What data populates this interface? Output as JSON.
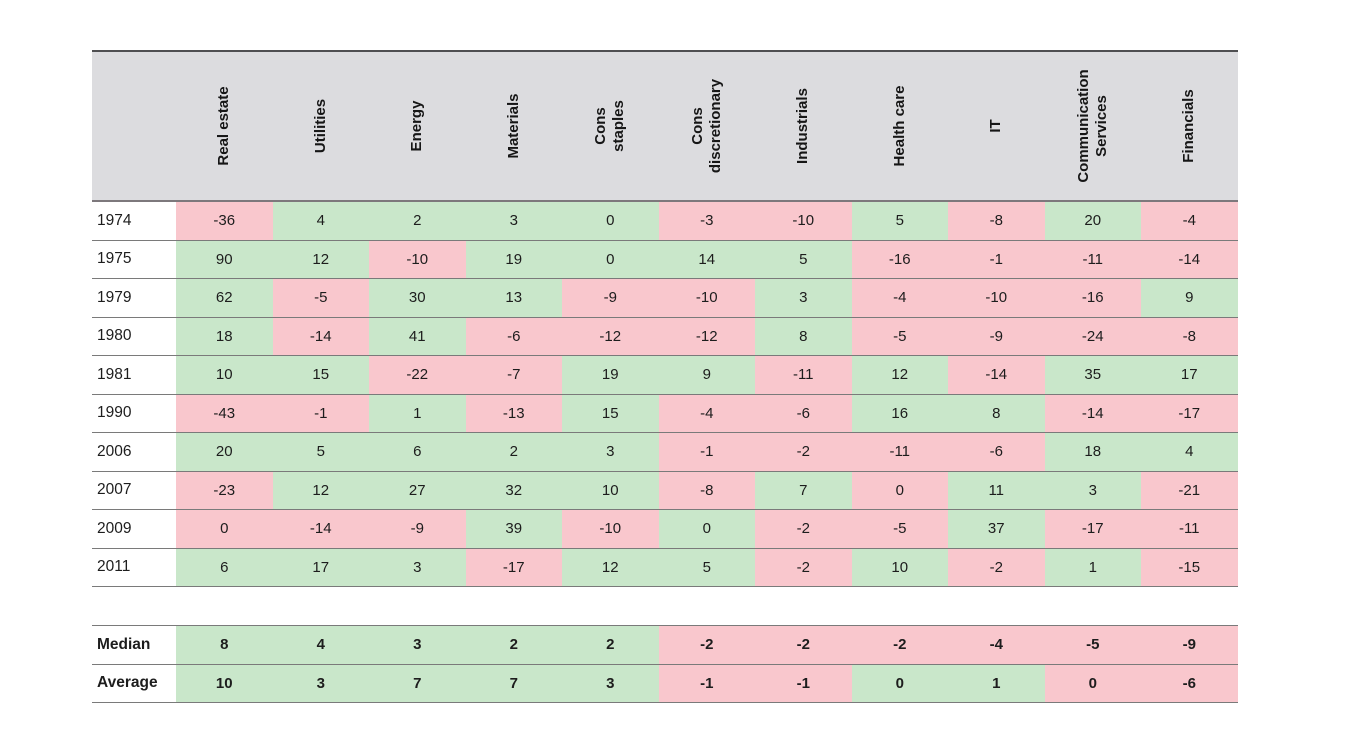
{
  "colors": {
    "positive_bg": "#c9e7ca",
    "negative_bg": "#f9c7cd",
    "header_bg": "#dcdcdf",
    "grid_line": "#7a7a7a",
    "text": "#1d1d1d"
  },
  "chart_data": {
    "type": "table",
    "title": "",
    "columns": [
      "Real estate",
      "Utilities",
      "Energy",
      "Materials",
      "Cons\nstaples",
      "Cons\ndiscretionary",
      "Industrials",
      "Health care",
      "IT",
      "Communication\nServices",
      "Financials"
    ],
    "cell_color_legend": {
      "g": "green (outperform)",
      "r": "pink (underperform)"
    },
    "rows": [
      {
        "label": "1974",
        "values": [
          -36,
          4,
          2,
          3,
          0,
          -3,
          -10,
          5,
          -8,
          20,
          -4
        ],
        "colors": [
          "r",
          "g",
          "g",
          "g",
          "g",
          "r",
          "r",
          "g",
          "r",
          "g",
          "r"
        ]
      },
      {
        "label": "1975",
        "values": [
          90,
          12,
          -10,
          19,
          0,
          14,
          5,
          -16,
          -1,
          -11,
          -14
        ],
        "colors": [
          "g",
          "g",
          "r",
          "g",
          "g",
          "g",
          "g",
          "r",
          "r",
          "r",
          "r"
        ]
      },
      {
        "label": "1979",
        "values": [
          62,
          -5,
          30,
          13,
          -9,
          -10,
          3,
          -4,
          -10,
          -16,
          9
        ],
        "colors": [
          "g",
          "r",
          "g",
          "g",
          "r",
          "r",
          "g",
          "r",
          "r",
          "r",
          "g"
        ]
      },
      {
        "label": "1980",
        "values": [
          18,
          -14,
          41,
          -6,
          -12,
          -12,
          8,
          -5,
          -9,
          -24,
          -8
        ],
        "colors": [
          "g",
          "r",
          "g",
          "r",
          "r",
          "r",
          "g",
          "r",
          "r",
          "r",
          "r"
        ]
      },
      {
        "label": "1981",
        "values": [
          10,
          15,
          -22,
          -7,
          19,
          9,
          -11,
          12,
          -14,
          35,
          17
        ],
        "colors": [
          "g",
          "g",
          "r",
          "r",
          "g",
          "g",
          "r",
          "g",
          "r",
          "g",
          "g"
        ]
      },
      {
        "label": "1990",
        "values": [
          -43,
          -1,
          1,
          -13,
          15,
          -4,
          -6,
          16,
          8,
          -14,
          -17
        ],
        "colors": [
          "r",
          "r",
          "g",
          "r",
          "g",
          "r",
          "r",
          "g",
          "g",
          "r",
          "r"
        ]
      },
      {
        "label": "2006",
        "values": [
          20,
          5,
          6,
          2,
          3,
          -1,
          -2,
          -11,
          -6,
          18,
          4
        ],
        "colors": [
          "g",
          "g",
          "g",
          "g",
          "g",
          "r",
          "r",
          "r",
          "r",
          "g",
          "g"
        ]
      },
      {
        "label": "2007",
        "values": [
          -23,
          12,
          27,
          32,
          10,
          -8,
          7,
          0,
          11,
          3,
          -21
        ],
        "colors": [
          "r",
          "g",
          "g",
          "g",
          "g",
          "r",
          "g",
          "r",
          "g",
          "g",
          "r"
        ]
      },
      {
        "label": "2009",
        "values": [
          0,
          -14,
          -9,
          39,
          -10,
          0,
          -2,
          -5,
          37,
          -17,
          -11
        ],
        "colors": [
          "r",
          "r",
          "r",
          "g",
          "r",
          "g",
          "r",
          "r",
          "g",
          "r",
          "r"
        ]
      },
      {
        "label": "2011",
        "values": [
          6,
          17,
          3,
          -17,
          12,
          5,
          -2,
          10,
          -2,
          1,
          -15
        ],
        "colors": [
          "g",
          "g",
          "g",
          "r",
          "g",
          "g",
          "r",
          "g",
          "r",
          "g",
          "r"
        ]
      }
    ],
    "summary_rows": [
      {
        "label": "Median",
        "values": [
          8,
          4,
          3,
          2,
          2,
          -2,
          -2,
          -2,
          -4,
          -5,
          -9
        ],
        "colors": [
          "g",
          "g",
          "g",
          "g",
          "g",
          "r",
          "r",
          "r",
          "r",
          "r",
          "r"
        ]
      },
      {
        "label": "Average",
        "values": [
          10,
          3,
          7,
          7,
          3,
          -1,
          -1,
          0,
          1,
          0,
          -6
        ],
        "colors": [
          "g",
          "g",
          "g",
          "g",
          "g",
          "r",
          "r",
          "g",
          "g",
          "r",
          "r"
        ]
      }
    ]
  }
}
